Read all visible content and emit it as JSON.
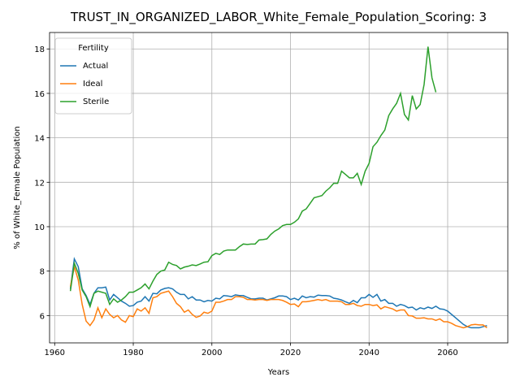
{
  "chart_data": {
    "type": "line",
    "title": "TRUST_IN_ORGANIZED_LABOR_White_Female_Population_Scoring: 3",
    "x_label": "Years",
    "y_label": "% of White_Female Population",
    "legend_title": "Fertility",
    "legend": "upper left",
    "grid": true,
    "x": [
      1964,
      1965,
      1966,
      1967,
      1968,
      1969,
      1970,
      1971,
      1972,
      1973,
      1974,
      1975,
      1976,
      1977,
      1978,
      1979,
      1980,
      1981,
      1982,
      1983,
      1984,
      1985,
      1986,
      1987,
      1988,
      1989,
      1990,
      1991,
      1992,
      1993,
      1994,
      1995,
      1996,
      1997,
      1998,
      1999,
      2000,
      2001,
      2002,
      2003,
      2004,
      2005,
      2006,
      2007,
      2008,
      2009,
      2010,
      2011,
      2012,
      2013,
      2014,
      2015,
      2016,
      2017,
      2018,
      2019,
      2020,
      2021,
      2022,
      2023,
      2024,
      2025,
      2026,
      2027,
      2028,
      2029,
      2030,
      2031,
      2032,
      2033,
      2034,
      2035,
      2036,
      2037,
      2038,
      2039,
      2040,
      2041,
      2042,
      2043,
      2044,
      2045,
      2046,
      2047,
      2048,
      2049,
      2050,
      2051,
      2052,
      2053,
      2054,
      2055,
      2056,
      2057,
      2058,
      2059,
      2060,
      2061,
      2062,
      2063,
      2064,
      2065,
      2066,
      2067,
      2068,
      2069,
      2070
    ],
    "series": [
      {
        "name": "Actual",
        "color": "#1f77b4",
        "values": [
          7.2,
          8.55,
          8.2,
          7.2,
          6.9,
          6.5,
          7.0,
          7.25,
          7.25,
          7.28,
          6.7,
          6.95,
          6.8,
          6.65,
          6.55,
          6.42,
          6.45,
          6.6,
          6.65,
          6.85,
          6.65,
          7.0,
          6.98,
          7.15,
          7.22,
          7.25,
          7.2,
          7.05,
          6.95,
          6.95,
          6.75,
          6.85,
          6.7,
          6.7,
          6.62,
          6.68,
          6.65,
          6.78,
          6.75,
          6.9,
          6.88,
          6.85,
          6.93,
          6.9,
          6.9,
          6.82,
          6.75,
          6.75,
          6.78,
          6.78,
          6.7,
          6.75,
          6.8,
          6.88,
          6.88,
          6.85,
          6.72,
          6.78,
          6.7,
          6.88,
          6.8,
          6.85,
          6.83,
          6.92,
          6.9,
          6.9,
          6.88,
          6.78,
          6.75,
          6.7,
          6.62,
          6.55,
          6.68,
          6.58,
          6.8,
          6.8,
          6.95,
          6.82,
          6.95,
          6.65,
          6.72,
          6.55,
          6.55,
          6.42,
          6.5,
          6.45,
          6.35,
          6.38,
          6.25,
          6.35,
          6.3,
          6.38,
          6.32,
          6.42,
          6.3,
          6.28,
          6.2,
          6.05,
          5.9,
          5.75,
          5.6,
          5.5,
          5.45,
          5.45,
          5.45,
          5.5,
          5.55
        ]
      },
      {
        "name": "Ideal",
        "color": "#ff7f0e",
        "values": [
          7.3,
          8.2,
          7.6,
          6.5,
          5.75,
          5.55,
          5.8,
          6.35,
          5.9,
          6.3,
          6.05,
          5.9,
          6.0,
          5.8,
          5.7,
          6.0,
          5.95,
          6.3,
          6.2,
          6.35,
          6.1,
          6.8,
          6.85,
          7.0,
          7.05,
          7.1,
          6.85,
          6.55,
          6.4,
          6.15,
          6.25,
          6.05,
          5.92,
          5.98,
          6.15,
          6.1,
          6.2,
          6.6,
          6.6,
          6.65,
          6.72,
          6.72,
          6.85,
          6.85,
          6.82,
          6.72,
          6.72,
          6.7,
          6.72,
          6.72,
          6.68,
          6.72,
          6.72,
          6.72,
          6.68,
          6.6,
          6.5,
          6.52,
          6.4,
          6.62,
          6.62,
          6.65,
          6.68,
          6.72,
          6.68,
          6.72,
          6.65,
          6.65,
          6.65,
          6.62,
          6.5,
          6.5,
          6.55,
          6.45,
          6.42,
          6.5,
          6.5,
          6.45,
          6.48,
          6.3,
          6.4,
          6.35,
          6.3,
          6.2,
          6.25,
          6.25,
          6.0,
          5.98,
          5.88,
          5.88,
          5.9,
          5.85,
          5.85,
          5.78,
          5.85,
          5.72,
          5.72,
          5.65,
          5.55,
          5.5,
          5.45,
          5.5,
          5.58,
          5.6,
          5.58,
          5.58,
          5.45
        ]
      },
      {
        "name": "Sterile",
        "color": "#2ca02c",
        "values": [
          7.1,
          8.35,
          7.9,
          7.15,
          6.85,
          6.4,
          7.0,
          7.1,
          7.05,
          7.0,
          6.5,
          6.75,
          6.6,
          6.7,
          6.85,
          7.05,
          7.05,
          7.15,
          7.25,
          7.42,
          7.2,
          7.55,
          7.85,
          8.0,
          8.05,
          8.4,
          8.3,
          8.25,
          8.1,
          8.18,
          8.22,
          8.28,
          8.25,
          8.32,
          8.4,
          8.42,
          8.7,
          8.8,
          8.75,
          8.9,
          8.95,
          8.95,
          8.95,
          9.1,
          9.22,
          9.2,
          9.22,
          9.22,
          9.4,
          9.42,
          9.45,
          9.65,
          9.8,
          9.9,
          10.05,
          10.1,
          10.1,
          10.2,
          10.35,
          10.7,
          10.8,
          11.05,
          11.3,
          11.35,
          11.4,
          11.6,
          11.75,
          11.95,
          11.95,
          12.5,
          12.35,
          12.2,
          12.2,
          12.4,
          11.9,
          12.5,
          12.85,
          13.6,
          13.8,
          14.1,
          14.35,
          15.0,
          15.3,
          15.55,
          16.0,
          15.05,
          14.8,
          15.9,
          15.3,
          15.5,
          16.4,
          18.1,
          16.7,
          16.05,
          null,
          null,
          null,
          null,
          null,
          null,
          null,
          null,
          null,
          null,
          null,
          null,
          null
        ]
      }
    ],
    "xlim": [
      1958.7,
      2075.3
    ],
    "xticks": [
      1960,
      1980,
      2000,
      2020,
      2040,
      2060
    ],
    "ylim": [
      4.77,
      18.74
    ],
    "yticks": [
      6,
      8,
      10,
      12,
      14,
      16,
      18
    ]
  }
}
